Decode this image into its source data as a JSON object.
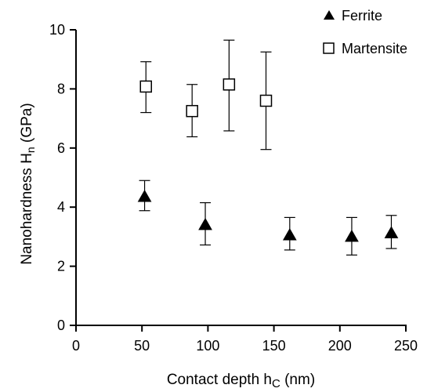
{
  "chart_data": {
    "type": "scatter",
    "xlabel": {
      "pre": "Contact depth h",
      "sub": "C",
      "post": " (nm)"
    },
    "ylabel": {
      "pre": "Nanohardness H",
      "sub": "n",
      "post": " (GPa)"
    },
    "xlim": [
      0,
      250
    ],
    "ylim": [
      0,
      10
    ],
    "xticks": [
      "0",
      "50",
      "100",
      "150",
      "200",
      "250"
    ],
    "yticks": [
      "0",
      "2",
      "4",
      "6",
      "8",
      "10"
    ],
    "grid": false,
    "legend_position": "top-right",
    "series": [
      {
        "name": "Ferrite",
        "marker": "filled-triangle",
        "x": [
          52,
          98,
          162,
          209,
          239
        ],
        "y": [
          4.35,
          3.4,
          3.05,
          3.0,
          3.12
        ],
        "err_low": [
          3.88,
          2.72,
          2.55,
          2.38,
          2.6
        ],
        "err_high": [
          4.9,
          4.15,
          3.65,
          3.65,
          3.72
        ]
      },
      {
        "name": "Martensite",
        "marker": "open-square",
        "x": [
          53,
          88,
          116,
          144
        ],
        "y": [
          8.08,
          7.25,
          8.15,
          7.6
        ],
        "err_low": [
          7.2,
          6.38,
          6.58,
          5.95
        ],
        "err_high": [
          8.92,
          8.15,
          9.65,
          9.25
        ]
      }
    ]
  }
}
